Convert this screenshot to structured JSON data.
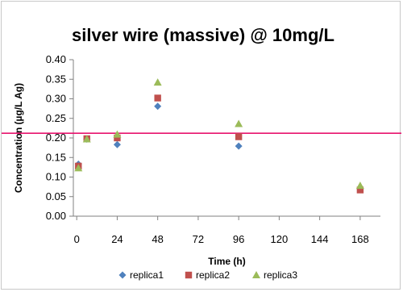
{
  "chart_data": {
    "type": "scatter",
    "title": "silver wire (massive) @ 10mg/L",
    "xlabel": "Time (h)",
    "ylabel": "Concentration (µg/L Ag)",
    "xlim": [
      -2,
      180
    ],
    "ylim": [
      0,
      0.4
    ],
    "x_ticks": [
      0,
      24,
      48,
      72,
      96,
      120,
      144,
      168
    ],
    "y_ticks": [
      "0.00",
      "0.05",
      "0.10",
      "0.15",
      "0.20",
      "0.25",
      "0.30",
      "0.35",
      "0.40"
    ],
    "grid": false,
    "legend_position": "bottom",
    "reference_line": {
      "y": 0.212,
      "color": "#e8146e"
    },
    "series": [
      {
        "name": "replica1",
        "marker": "diamond",
        "color": "#4f81bd",
        "x": [
          1,
          6,
          24,
          48,
          96,
          168
        ],
        "y": [
          0.133,
          0.197,
          0.183,
          0.281,
          0.179,
          0.07
        ]
      },
      {
        "name": "replica2",
        "marker": "square",
        "color": "#c0504d",
        "x": [
          1,
          6,
          24,
          48,
          96,
          168
        ],
        "y": [
          0.128,
          0.198,
          0.2,
          0.302,
          0.203,
          0.067
        ]
      },
      {
        "name": "replica3",
        "marker": "triangle",
        "color": "#9bbb59",
        "x": [
          1,
          6,
          24,
          48,
          96,
          168
        ],
        "y": [
          0.123,
          0.197,
          0.209,
          0.342,
          0.236,
          0.078
        ]
      }
    ]
  }
}
